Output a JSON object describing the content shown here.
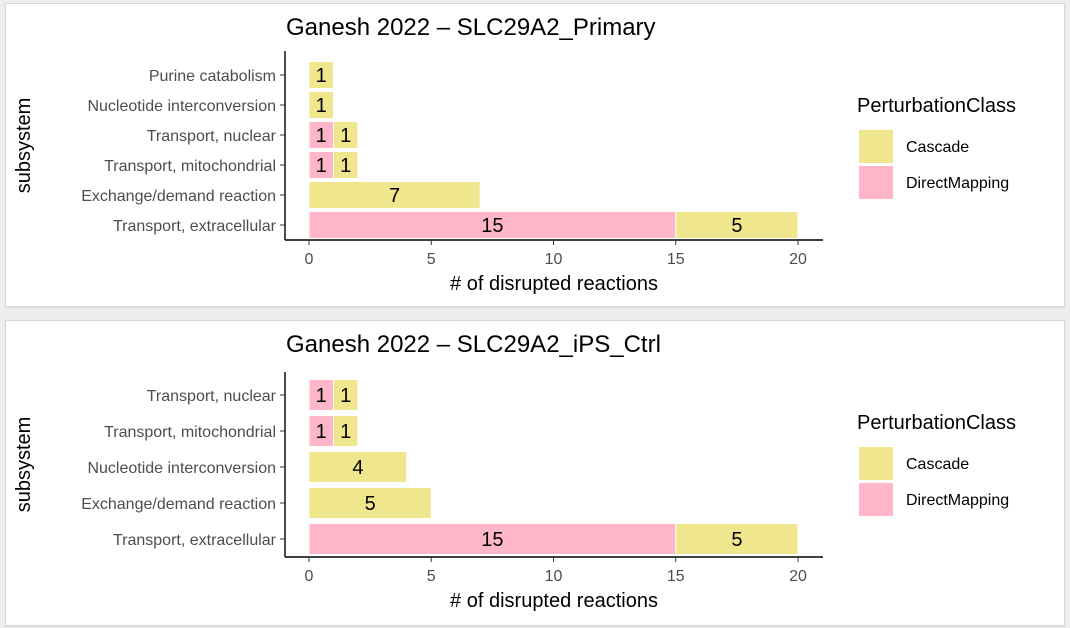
{
  "chart_data": [
    {
      "type": "bar",
      "orientation": "horizontal",
      "stacked": true,
      "title": "Ganesh 2022 – SLC29A2_Primary",
      "xlabel": "# of disrupted reactions",
      "ylabel": "subsystem",
      "xlim": [
        0,
        20
      ],
      "xticks": [
        "0",
        "5",
        "10",
        "15",
        "20"
      ],
      "categories": [
        "Purine catabolism",
        "Nucleotide interconversion",
        "Transport, nuclear",
        "Transport, mitochondrial",
        "Exchange/demand reaction",
        "Transport, extracellular"
      ],
      "series": [
        {
          "name": "DirectMapping",
          "color": "#ffb6c8",
          "values": [
            0,
            0,
            1,
            1,
            0,
            15
          ]
        },
        {
          "name": "Cascade",
          "color": "#efe68e",
          "values": [
            1,
            1,
            1,
            1,
            7,
            5
          ]
        }
      ],
      "legend": {
        "title": "PerturbationClass",
        "position": "right",
        "entries": [
          "Cascade",
          "DirectMapping"
        ]
      },
      "grid": false
    },
    {
      "type": "bar",
      "orientation": "horizontal",
      "stacked": true,
      "title": "Ganesh 2022 – SLC29A2_iPS_Ctrl",
      "xlabel": "# of disrupted reactions",
      "ylabel": "subsystem",
      "xlim": [
        0,
        20
      ],
      "xticks": [
        "0",
        "5",
        "10",
        "15",
        "20"
      ],
      "categories": [
        "Transport, nuclear",
        "Transport, mitochondrial",
        "Nucleotide interconversion",
        "Exchange/demand reaction",
        "Transport, extracellular"
      ],
      "series": [
        {
          "name": "DirectMapping",
          "color": "#ffb6c8",
          "values": [
            1,
            1,
            0,
            0,
            15
          ]
        },
        {
          "name": "Cascade",
          "color": "#efe68e",
          "values": [
            1,
            1,
            4,
            5,
            5
          ]
        }
      ],
      "legend": {
        "title": "PerturbationClass",
        "position": "right",
        "entries": [
          "Cascade",
          "DirectMapping"
        ]
      },
      "grid": false
    }
  ]
}
